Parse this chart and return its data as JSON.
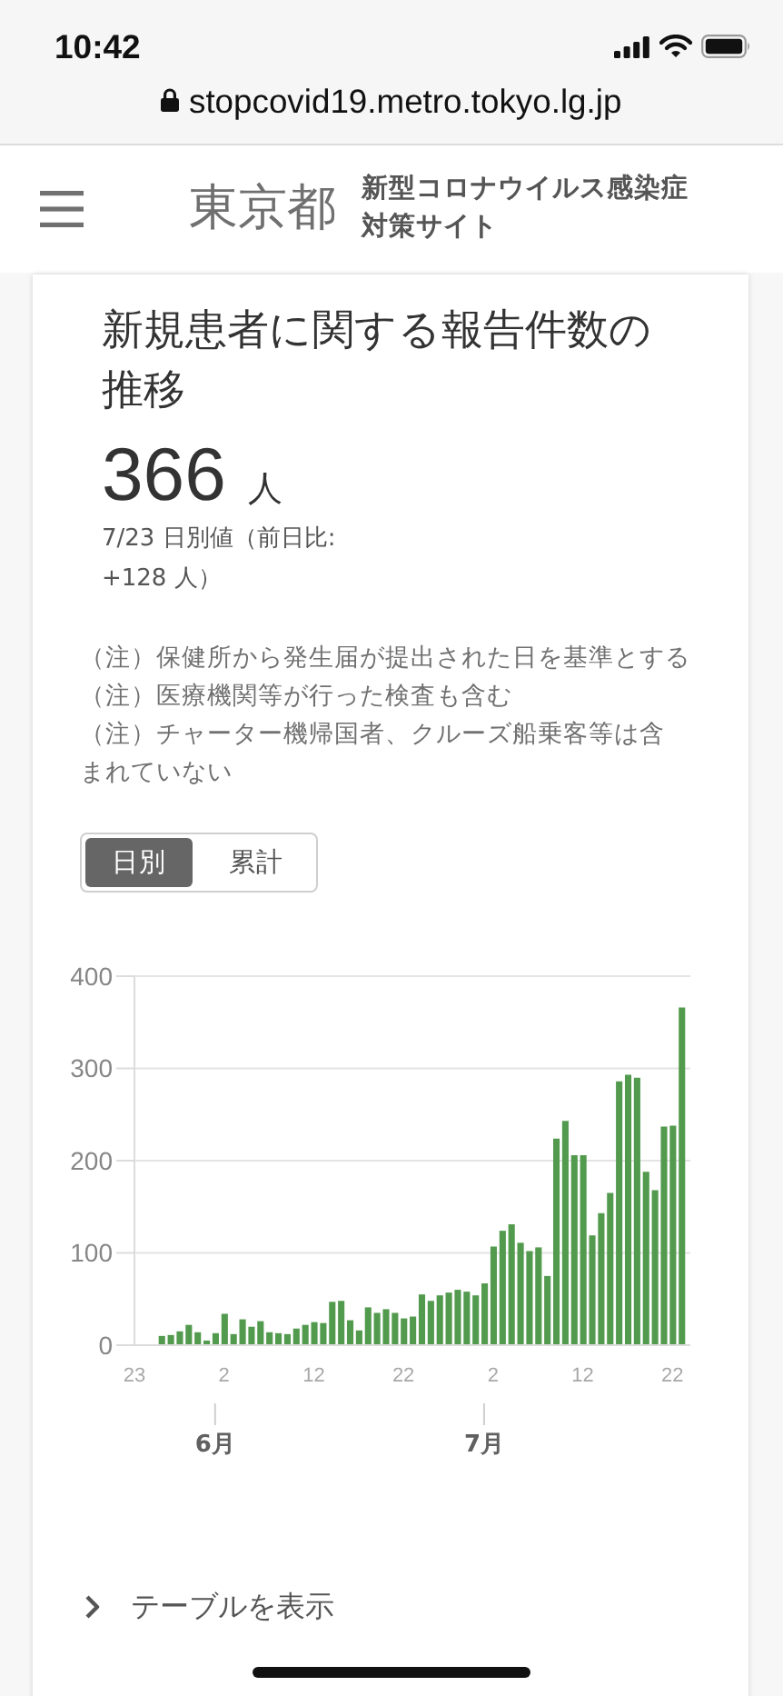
{
  "chart_data": {
    "type": "bar",
    "title": "新規患者に関する報告件数の推移",
    "x": [
      "--05-26",
      "--05-27",
      "--05-28",
      "--05-29",
      "--05-30",
      "--05-31",
      "--06-01",
      "--06-02",
      "--06-03",
      "--06-04",
      "--06-05",
      "--06-06",
      "--06-07",
      "--06-08",
      "--06-09",
      "--06-10",
      "--06-11",
      "--06-12",
      "--06-13",
      "--06-14",
      "--06-15",
      "--06-16",
      "--06-17",
      "--06-18",
      "--06-19",
      "--06-20",
      "--06-21",
      "--06-22",
      "--06-23",
      "--06-24",
      "--06-25",
      "--06-26",
      "--06-27",
      "--06-28",
      "--06-29",
      "--06-30",
      "--07-01",
      "--07-02",
      "--07-03",
      "--07-04",
      "--07-05",
      "--07-06",
      "--07-07",
      "--07-08",
      "--07-09",
      "--07-10",
      "--07-11",
      "--07-12",
      "--07-13",
      "--07-14",
      "--07-15",
      "--07-16",
      "--07-17",
      "--07-18",
      "--07-19",
      "--07-20",
      "--07-21",
      "--07-22",
      "--07-23"
    ],
    "values": [
      10,
      11,
      15,
      22,
      14,
      5,
      13,
      34,
      12,
      28,
      20,
      26,
      14,
      13,
      12,
      18,
      22,
      25,
      24,
      47,
      48,
      27,
      16,
      41,
      35,
      39,
      35,
      29,
      31,
      55,
      48,
      54,
      57,
      60,
      58,
      54,
      67,
      107,
      124,
      131,
      111,
      102,
      106,
      75,
      224,
      243,
      206,
      206,
      119,
      143,
      165,
      286,
      293,
      290,
      188,
      168,
      237,
      238,
      366
    ],
    "color": "#529a4d",
    "xlim": [
      "--05-23",
      "--07-24"
    ],
    "xticks": [
      {
        "value": "--05-23",
        "label": "23"
      },
      {
        "value": "--06-02",
        "label": "2"
      },
      {
        "value": "--06-12",
        "label": "12"
      },
      {
        "value": "--06-22",
        "label": "22"
      },
      {
        "value": "--07-02",
        "label": "2"
      },
      {
        "value": "--07-12",
        "label": "12"
      },
      {
        "value": "--07-22",
        "label": "22"
      }
    ],
    "x2lim": [
      "--05-23",
      "--07-24"
    ],
    "x2ticks": [
      {
        "value": "--06-01",
        "label": "6月"
      },
      {
        "value": "--07-01",
        "label": "7月"
      }
    ],
    "ylim": [
      0,
      400
    ],
    "yticks": [
      0,
      100,
      200,
      300,
      400
    ],
    "grid": "y",
    "annotations": [
      "10:42",
      "stopcovid19.metro.tokyo.lg.jp",
      "東京都",
      "新型コロナウイルス感染症対策サイト",
      "366 人",
      "7/23 日別値（前日比: +128 人）",
      "（注）保健所から発生届が提出された日を基準とする",
      "（注）医療機関等が行った検査も含む",
      "（注）チャーター機帰国者、クルーズ船乗客等は含まれていない",
      "日別",
      "累計",
      "テーブルを表示"
    ]
  }
}
